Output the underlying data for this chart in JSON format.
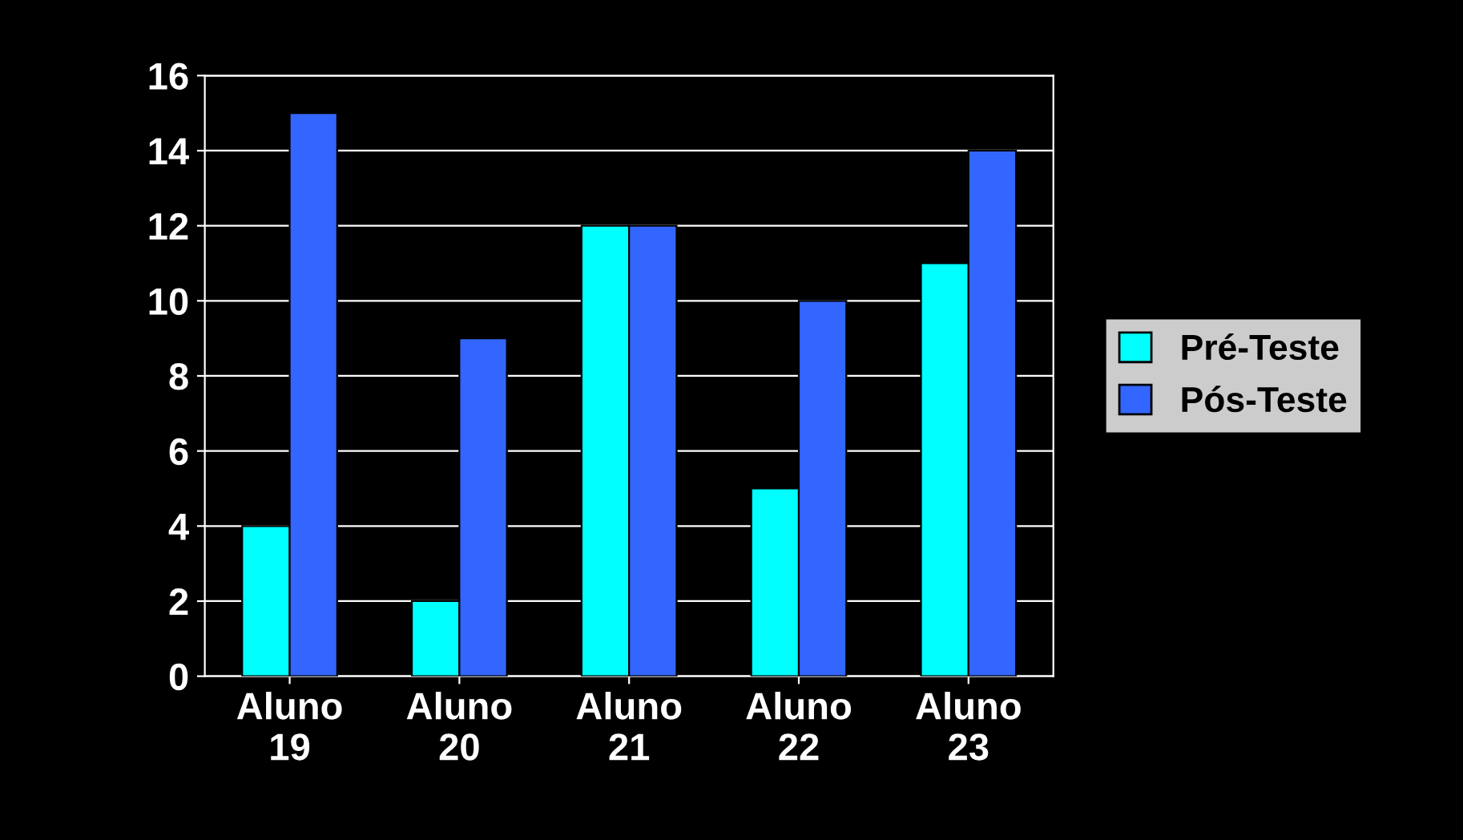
{
  "chart_data": {
    "type": "bar",
    "categories": [
      "Aluno\n19",
      "Aluno\n20",
      "Aluno\n21",
      "Aluno\n22",
      "Aluno\n23"
    ],
    "series": [
      {
        "name": "Pré-Teste",
        "color": "#00ffff",
        "values": [
          4,
          2,
          12,
          5,
          11
        ]
      },
      {
        "name": "Pós-Teste",
        "color": "#3366ff",
        "values": [
          15,
          9,
          12,
          10,
          14
        ]
      }
    ],
    "ylim": [
      0,
      16
    ],
    "yticks": [
      0,
      2,
      4,
      6,
      8,
      10,
      12,
      14,
      16
    ],
    "grid": "y",
    "legend": "right"
  }
}
